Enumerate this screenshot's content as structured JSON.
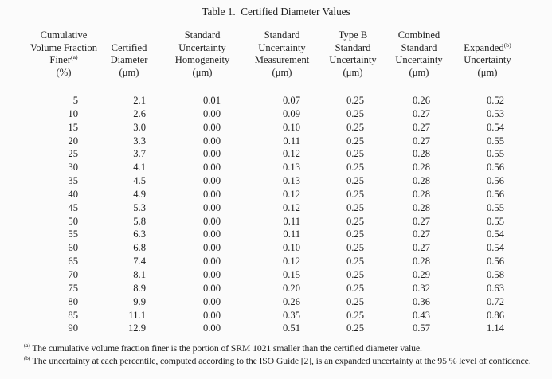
{
  "page": {
    "background_color": "#fbfbfb",
    "text_color": "#1e1e1e"
  },
  "title": "Table 1.  Certified Diameter Values",
  "table": {
    "columns": [
      {
        "id": "cumulative-volume-fraction-finer",
        "header_lines": [
          "Cumulative",
          "Volume Fraction",
          "Finer^(a)",
          "(%)"
        ]
      },
      {
        "id": "certified-diameter",
        "header_lines": [
          "Certified",
          "Diameter",
          "(μm)"
        ]
      },
      {
        "id": "standard-uncertainty-homogeneity",
        "header_lines": [
          "Standard",
          "Uncertainty",
          "Homogeneity",
          "(μm)"
        ]
      },
      {
        "id": "standard-uncertainty-measurement",
        "header_lines": [
          "Standard",
          "Uncertainty",
          "Measurement",
          "(μm)"
        ]
      },
      {
        "id": "type-b-standard-uncertainty",
        "header_lines": [
          "Type B",
          "Standard",
          "Uncertainty",
          "(μm)"
        ]
      },
      {
        "id": "combined-standard-uncertainty",
        "header_lines": [
          "Combined",
          "Standard",
          "Uncertainty",
          "(μm)"
        ]
      },
      {
        "id": "expanded-uncertainty",
        "header_lines": [
          "Expanded^(b)",
          "Uncertainty",
          "(μm)"
        ]
      }
    ],
    "rows": [
      [
        "5",
        "2.1",
        "0.01",
        "0.07",
        "0.25",
        "0.26",
        "0.52"
      ],
      [
        "10",
        "2.6",
        "0.00",
        "0.09",
        "0.25",
        "0.27",
        "0.53"
      ],
      [
        "15",
        "3.0",
        "0.00",
        "0.10",
        "0.25",
        "0.27",
        "0.54"
      ],
      [
        "20",
        "3.3",
        "0.00",
        "0.11",
        "0.25",
        "0.27",
        "0.55"
      ],
      [
        "25",
        "3.7",
        "0.00",
        "0.12",
        "0.25",
        "0.28",
        "0.55"
      ],
      [
        "30",
        "4.1",
        "0.00",
        "0.13",
        "0.25",
        "0.28",
        "0.56"
      ],
      [
        "35",
        "4.5",
        "0.00",
        "0.13",
        "0.25",
        "0.28",
        "0.56"
      ],
      [
        "40",
        "4.9",
        "0.00",
        "0.12",
        "0.25",
        "0.28",
        "0.56"
      ],
      [
        "45",
        "5.3",
        "0.00",
        "0.12",
        "0.25",
        "0.28",
        "0.55"
      ],
      [
        "50",
        "5.8",
        "0.00",
        "0.11",
        "0.25",
        "0.27",
        "0.55"
      ],
      [
        "55",
        "6.3",
        "0.00",
        "0.11",
        "0.25",
        "0.27",
        "0.54"
      ],
      [
        "60",
        "6.8",
        "0.00",
        "0.10",
        "0.25",
        "0.27",
        "0.54"
      ],
      [
        "65",
        "7.4",
        "0.00",
        "0.12",
        "0.25",
        "0.28",
        "0.56"
      ],
      [
        "70",
        "8.1",
        "0.00",
        "0.15",
        "0.25",
        "0.29",
        "0.58"
      ],
      [
        "75",
        "8.9",
        "0.00",
        "0.20",
        "0.25",
        "0.32",
        "0.63"
      ],
      [
        "80",
        "9.9",
        "0.00",
        "0.26",
        "0.25",
        "0.36",
        "0.72"
      ],
      [
        "85",
        "11.1",
        "0.00",
        "0.35",
        "0.25",
        "0.43",
        "0.86"
      ],
      [
        "90",
        "12.9",
        "0.00",
        "0.51",
        "0.25",
        "0.57",
        "1.14"
      ]
    ]
  },
  "footnotes": [
    {
      "marker": "(a)",
      "text": "The cumulative volume fraction finer is the portion of SRM 1021 smaller than the certified diameter value."
    },
    {
      "marker": "(b)",
      "text": "The uncertainty at each percentile, computed according to the ISO Guide [2], is an expanded uncertainty at the 95 % level of confidence."
    }
  ],
  "chart_data": {
    "type": "table",
    "title": "Table 1.  Certified Diameter Values",
    "categories_label": "Cumulative Volume Fraction Finer (%)",
    "categories": [
      5,
      10,
      15,
      20,
      25,
      30,
      35,
      40,
      45,
      50,
      55,
      60,
      65,
      70,
      75,
      80,
      85,
      90
    ],
    "series": [
      {
        "name": "Certified Diameter (μm)",
        "values": [
          2.1,
          2.6,
          3.0,
          3.3,
          3.7,
          4.1,
          4.5,
          4.9,
          5.3,
          5.8,
          6.3,
          6.8,
          7.4,
          8.1,
          8.9,
          9.9,
          11.1,
          12.9
        ]
      },
      {
        "name": "Standard Uncertainty Homogeneity (μm)",
        "values": [
          0.01,
          0.0,
          0.0,
          0.0,
          0.0,
          0.0,
          0.0,
          0.0,
          0.0,
          0.0,
          0.0,
          0.0,
          0.0,
          0.0,
          0.0,
          0.0,
          0.0,
          0.0
        ]
      },
      {
        "name": "Standard Uncertainty Measurement (μm)",
        "values": [
          0.07,
          0.09,
          0.1,
          0.11,
          0.12,
          0.13,
          0.13,
          0.12,
          0.12,
          0.11,
          0.11,
          0.1,
          0.12,
          0.15,
          0.2,
          0.26,
          0.35,
          0.51
        ]
      },
      {
        "name": "Type B Standard Uncertainty (μm)",
        "values": [
          0.25,
          0.25,
          0.25,
          0.25,
          0.25,
          0.25,
          0.25,
          0.25,
          0.25,
          0.25,
          0.25,
          0.25,
          0.25,
          0.25,
          0.25,
          0.25,
          0.25,
          0.25
        ]
      },
      {
        "name": "Combined Standard Uncertainty (μm)",
        "values": [
          0.26,
          0.27,
          0.27,
          0.27,
          0.28,
          0.28,
          0.28,
          0.28,
          0.28,
          0.27,
          0.27,
          0.27,
          0.28,
          0.29,
          0.32,
          0.36,
          0.43,
          0.57
        ]
      },
      {
        "name": "Expanded Uncertainty (μm)",
        "values": [
          0.52,
          0.53,
          0.54,
          0.55,
          0.55,
          0.56,
          0.56,
          0.56,
          0.55,
          0.55,
          0.54,
          0.54,
          0.56,
          0.58,
          0.63,
          0.72,
          0.86,
          1.14
        ]
      }
    ]
  }
}
